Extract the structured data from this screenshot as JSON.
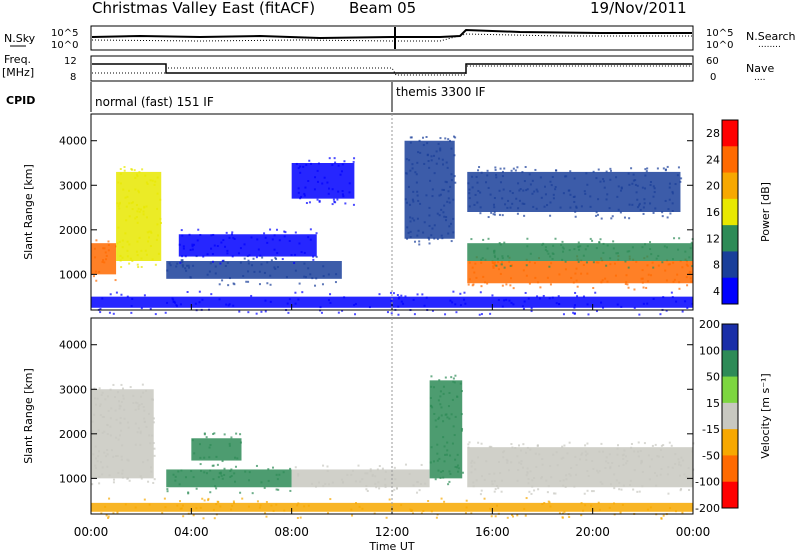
{
  "header": {
    "station": "Christmas Valley East (fitACF)",
    "beam": "Beam 05",
    "date": "19/Nov/2011"
  },
  "panels": {
    "noise": {
      "left_label": "N.Sky",
      "left_ticks": [
        "10^5",
        "10^0"
      ],
      "right_ticks": [
        "10^5",
        "10^0"
      ],
      "right_label": "N.Search",
      "legend_sample": "........"
    },
    "freq": {
      "left_label_1": "Freq.",
      "left_label_2": "[MHz]",
      "left_ticks": [
        "12",
        "8"
      ],
      "right_ticks": [
        "60",
        "0"
      ],
      "right_label": "Nave",
      "legend_sample": "...."
    },
    "cpid": {
      "label": "CPID",
      "segments": [
        "normal (fast) 151 IF",
        "themis 3300 IF"
      ]
    }
  },
  "chart_data": [
    {
      "type": "heatmap",
      "title": "",
      "ylabel": "Slant Range [km]",
      "ylim": [
        200,
        4600
      ],
      "yticks": [
        "1000",
        "2000",
        "3000",
        "4000"
      ],
      "colorbar": {
        "label": "Power [dB]",
        "ticks": [
          "28",
          "24",
          "20",
          "16",
          "12",
          "8",
          "4"
        ],
        "colors": [
          "#ff0000",
          "#ff6a00",
          "#f7a800",
          "#e8e800",
          "#2e8b57",
          "#1a3f9a",
          "#0000ff"
        ]
      },
      "bands": [
        {
          "x0": 0.0,
          "x1": 1.0,
          "y0": 1000,
          "y1": 1700,
          "db": 26
        },
        {
          "x0": 1.0,
          "x1": 2.8,
          "y0": 1300,
          "y1": 3300,
          "db": 18
        },
        {
          "x0": 3.0,
          "x1": 10.0,
          "y0": 900,
          "y1": 1300,
          "db": 10
        },
        {
          "x0": 3.5,
          "x1": 9.0,
          "y0": 1400,
          "y1": 1900,
          "db": 6
        },
        {
          "x0": 8.0,
          "x1": 10.5,
          "y0": 2700,
          "y1": 3500,
          "db": 6
        },
        {
          "x0": 12.5,
          "x1": 14.5,
          "y0": 1800,
          "y1": 4000,
          "db": 8
        },
        {
          "x0": 15.0,
          "x1": 24.0,
          "y0": 800,
          "y1": 1300,
          "db": 27
        },
        {
          "x0": 15.0,
          "x1": 24.0,
          "y0": 1300,
          "y1": 1700,
          "db": 12
        },
        {
          "x0": 15.0,
          "x1": 23.5,
          "y0": 2400,
          "y1": 3300,
          "db": 8
        },
        {
          "x0": 0.0,
          "x1": 24.0,
          "y0": 250,
          "y1": 500,
          "db": 6
        }
      ]
    },
    {
      "type": "heatmap",
      "title": "",
      "ylabel": "Slant Range [km]",
      "xlabel": "Time UT",
      "xticks": [
        "00:00",
        "04:00",
        "08:00",
        "12:00",
        "16:00",
        "20:00",
        "00:00"
      ],
      "xlim": [
        0,
        24
      ],
      "ylim": [
        200,
        4600
      ],
      "yticks": [
        "1000",
        "2000",
        "3000",
        "4000"
      ],
      "colorbar": {
        "label": "Velocity [m s⁻¹]",
        "ticks": [
          "200",
          "100",
          "50",
          "15",
          "-15",
          "-50",
          "-100",
          "-200"
        ],
        "colors": [
          "#1a2fa8",
          "#2e8b57",
          "#7dd640",
          "#c8c8c0",
          "#f7a800",
          "#ff6a00",
          "#ff0000"
        ]
      },
      "bands": [
        {
          "x0": 0.0,
          "x1": 2.5,
          "y0": 1000,
          "y1": 3000,
          "v": 0
        },
        {
          "x0": 4.0,
          "x1": 6.0,
          "y0": 1400,
          "y1": 1900,
          "v": 50
        },
        {
          "x0": 3.0,
          "x1": 8.0,
          "y0": 800,
          "y1": 1200,
          "v": 50
        },
        {
          "x0": 8.0,
          "x1": 13.5,
          "y0": 800,
          "y1": 1200,
          "v": 0
        },
        {
          "x0": 13.5,
          "x1": 14.8,
          "y0": 1000,
          "y1": 3200,
          "v": 60
        },
        {
          "x0": 15.0,
          "x1": 24.0,
          "y0": 800,
          "y1": 1700,
          "v": 0
        },
        {
          "x0": 0.0,
          "x1": 24.0,
          "y0": 250,
          "y1": 450,
          "v": -40
        }
      ]
    }
  ]
}
